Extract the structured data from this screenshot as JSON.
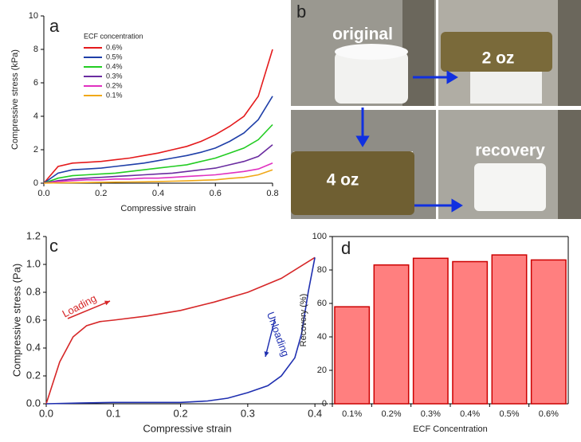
{
  "chart_data": [
    {
      "type": "line",
      "panel_label": "a",
      "x_label": "Compressive strain",
      "y_label": "Compressive stress (kPa)",
      "legend_title": "ECF concentration",
      "x": [
        0,
        0.05,
        0.1,
        0.15,
        0.2,
        0.25,
        0.3,
        0.35,
        0.4,
        0.45,
        0.5,
        0.55,
        0.6,
        0.65,
        0.7,
        0.75,
        0.8
      ],
      "series": [
        {
          "name": "0.6%",
          "color": "#e41a1c",
          "values": [
            0,
            1.0,
            1.2,
            1.25,
            1.3,
            1.4,
            1.5,
            1.65,
            1.8,
            2.0,
            2.2,
            2.5,
            2.9,
            3.4,
            4.0,
            5.2,
            8.0
          ]
        },
        {
          "name": "0.5%",
          "color": "#1f3fa8",
          "values": [
            0,
            0.6,
            0.8,
            0.85,
            0.9,
            1.0,
            1.1,
            1.2,
            1.35,
            1.5,
            1.65,
            1.85,
            2.1,
            2.5,
            3.0,
            3.8,
            5.2
          ]
        },
        {
          "name": "0.4%",
          "color": "#22cc22",
          "values": [
            0,
            0.3,
            0.45,
            0.5,
            0.55,
            0.6,
            0.7,
            0.8,
            0.9,
            1.0,
            1.1,
            1.3,
            1.5,
            1.8,
            2.1,
            2.6,
            3.5
          ]
        },
        {
          "name": "0.3%",
          "color": "#6a2ca0",
          "values": [
            0,
            0.15,
            0.25,
            0.3,
            0.35,
            0.4,
            0.45,
            0.5,
            0.55,
            0.6,
            0.7,
            0.8,
            0.9,
            1.1,
            1.3,
            1.6,
            2.3
          ]
        },
        {
          "name": "0.2%",
          "color": "#e030c0",
          "values": [
            0,
            0.1,
            0.15,
            0.2,
            0.2,
            0.25,
            0.25,
            0.3,
            0.3,
            0.35,
            0.4,
            0.45,
            0.5,
            0.6,
            0.7,
            0.85,
            1.2
          ]
        },
        {
          "name": "0.1%",
          "color": "#f0a818",
          "values": [
            0,
            0.02,
            0.03,
            0.04,
            0.05,
            0.06,
            0.07,
            0.08,
            0.1,
            0.12,
            0.14,
            0.17,
            0.2,
            0.28,
            0.35,
            0.5,
            0.8
          ]
        }
      ],
      "xlim": [
        0,
        0.8
      ],
      "xticks": [
        {
          "value": 0,
          "label": "0.0"
        },
        0.2,
        0.4,
        0.6,
        0.8
      ],
      "ylim": [
        0,
        10
      ],
      "yticks": [
        0,
        2,
        4,
        6,
        8,
        10
      ]
    },
    {
      "type": "line",
      "panel_label": "c",
      "x_label": "Compressive strain",
      "y_label": "Compressive stress (Pa)",
      "series": [
        {
          "color": "#d62728",
          "x": [
            0,
            0.02,
            0.04,
            0.06,
            0.08,
            0.1,
            0.15,
            0.2,
            0.25,
            0.3,
            0.35,
            0.4
          ],
          "values": [
            0,
            0.3,
            0.48,
            0.56,
            0.59,
            0.6,
            0.63,
            0.67,
            0.73,
            0.8,
            0.9,
            1.05
          ]
        },
        {
          "color": "#1f2fb0",
          "x": [
            0.4,
            0.39,
            0.38,
            0.37,
            0.35,
            0.33,
            0.3,
            0.27,
            0.24,
            0.2,
            0.15,
            0.1,
            0.05,
            0
          ],
          "values": [
            1.05,
            0.8,
            0.5,
            0.33,
            0.2,
            0.13,
            0.08,
            0.04,
            0.02,
            0.01,
            0.01,
            0.01,
            0.005,
            0
          ]
        }
      ],
      "annotations": [
        {
          "text": "Loading",
          "color": "#d62728"
        },
        {
          "text": "Unloading",
          "color": "#1f2fb0"
        }
      ],
      "xlim": [
        0,
        0.42
      ],
      "xticks": [
        {
          "value": 0,
          "label": "0.0"
        },
        0.1,
        0.2,
        0.3,
        0.4
      ],
      "ylim": [
        0,
        1.2
      ],
      "yticks": [
        {
          "value": 0,
          "label": "0.0"
        },
        0.2,
        0.4,
        0.6,
        0.8,
        {
          "value": 1,
          "label": "1.0"
        },
        1.2
      ]
    },
    {
      "type": "bar",
      "panel_label": "d",
      "x_label": "ECF Concentration",
      "y_label": "Recovery (%)",
      "categories": [
        "0.1%",
        "0.2%",
        "0.3%",
        "0.4%",
        "0.5%",
        "0.6%"
      ],
      "values": [
        58,
        83,
        87,
        85,
        89,
        86
      ],
      "color": "#ff7f7f",
      "edge_color": "#cc0000",
      "ylim": [
        0,
        100
      ],
      "yticks": [
        0,
        20,
        40,
        60,
        80,
        100
      ]
    }
  ],
  "photos": {
    "panel_label": "b",
    "labels": [
      "original",
      "2 oz",
      "4 oz",
      "recovery"
    ]
  }
}
